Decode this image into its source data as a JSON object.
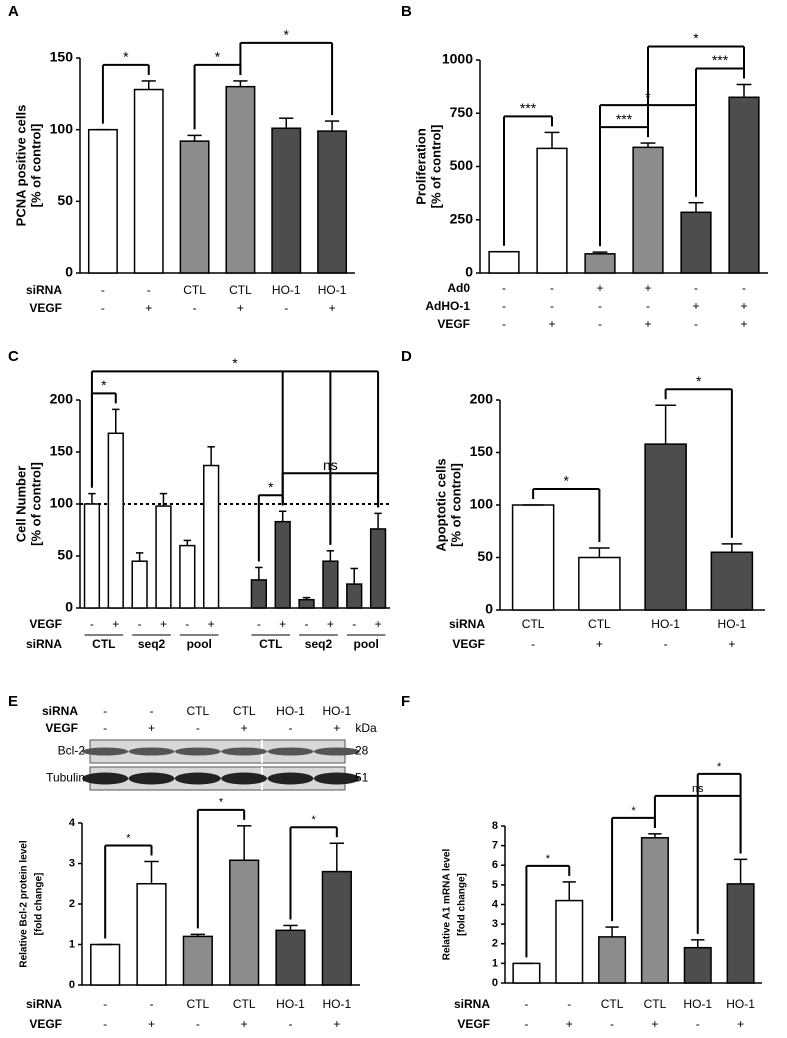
{
  "chart_data": [
    {
      "type": "bar",
      "label": "A",
      "ylabel": [
        "PCNA positive cells",
        "[% of control]"
      ],
      "values": [
        100,
        128,
        92,
        130,
        101,
        99
      ],
      "errors": [
        0,
        6,
        4,
        4,
        7,
        7
      ],
      "colors": [
        "#ffffff",
        "#ffffff",
        "#8c8c8c",
        "#8c8c8c",
        "#4d4d4d",
        "#4d4d4d"
      ],
      "ylim": [
        0,
        150
      ],
      "yticks": [
        0,
        50,
        100,
        150
      ],
      "rows": [
        {
          "label": "siRNA",
          "values": [
            "-",
            "-",
            "CTL",
            "CTL",
            "HO-1",
            "HO-1"
          ]
        },
        {
          "label": "VEGF",
          "values": [
            "-",
            "+",
            "-",
            "+",
            "-",
            "+"
          ]
        }
      ],
      "brackets": [
        {
          "text": "*",
          "bars": [
            0,
            1
          ]
        },
        {
          "text": "*",
          "bars": [
            2,
            3
          ]
        },
        {
          "text": "*",
          "bars": [
            3,
            5
          ]
        }
      ]
    },
    {
      "type": "bar",
      "label": "B",
      "ylabel": [
        "Proliferation",
        "[% of control]"
      ],
      "values": [
        100,
        585,
        90,
        590,
        285,
        825
      ],
      "errors": [
        0,
        75,
        8,
        20,
        45,
        60
      ],
      "colors": [
        "#ffffff",
        "#ffffff",
        "#8c8c8c",
        "#8c8c8c",
        "#4d4d4d",
        "#4d4d4d"
      ],
      "ylim": [
        0,
        1000
      ],
      "yticks": [
        0,
        250,
        500,
        750,
        1000
      ],
      "rows": [
        {
          "label": "Ad0",
          "values": [
            "-",
            "-",
            "+",
            "+",
            "-",
            "-"
          ]
        },
        {
          "label": "AdHO-1",
          "values": [
            "-",
            "-",
            "-",
            "-",
            "+",
            "+"
          ]
        },
        {
          "label": "VEGF",
          "values": [
            "-",
            "+",
            "-",
            "+",
            "-",
            "+"
          ]
        }
      ],
      "brackets": [
        {
          "text": "***",
          "bars": [
            0,
            1
          ]
        },
        {
          "text": "***",
          "bars": [
            2,
            3
          ]
        },
        {
          "text": "*",
          "bars": [
            2,
            4
          ]
        },
        {
          "text": "***",
          "bars": [
            4,
            5
          ]
        },
        {
          "text": "*",
          "bars": [
            3,
            5
          ]
        }
      ]
    },
    {
      "type": "bar",
      "label": "C",
      "ylabel": [
        "Cell Number",
        "[% of control]"
      ],
      "values": [
        100,
        168,
        45,
        98,
        60,
        137,
        27,
        83,
        8,
        45,
        23,
        76
      ],
      "errors": [
        10,
        23,
        8,
        12,
        5,
        18,
        12,
        10,
        2,
        10,
        15,
        15
      ],
      "colors": [
        "#ffffff",
        "#ffffff",
        "#ffffff",
        "#ffffff",
        "#ffffff",
        "#ffffff",
        "#4d4d4d",
        "#4d4d4d",
        "#4d4d4d",
        "#4d4d4d",
        "#4d4d4d",
        "#4d4d4d"
      ],
      "ylim": [
        0,
        200
      ],
      "yticks": [
        0,
        50,
        100,
        150,
        200
      ],
      "reference_line": 100,
      "rows": [
        {
          "label": "VEGF",
          "values": [
            "-",
            "+",
            "-",
            "+",
            "-",
            "+",
            "-",
            "+",
            "-",
            "+",
            "-",
            "+"
          ]
        },
        {
          "label": "siRNA",
          "values": [
            "CTL",
            "seq2",
            "pool",
            "CTL",
            "seq2",
            "pool"
          ]
        }
      ],
      "brackets": [
        {
          "text": "*",
          "bars": [
            0,
            1
          ]
        },
        {
          "text": "*",
          "bars": [
            6,
            7
          ]
        },
        {
          "text": "ns",
          "bars": [
            7,
            9,
            11
          ]
        },
        {
          "text": "*",
          "bars": [
            0,
            7,
            9,
            11
          ]
        }
      ]
    },
    {
      "type": "bar",
      "label": "D",
      "ylabel": [
        "Apoptotic cells",
        "[% of control]"
      ],
      "values": [
        100,
        50,
        158,
        55
      ],
      "errors": [
        0,
        9,
        37,
        8
      ],
      "colors": [
        "#ffffff",
        "#ffffff",
        "#4d4d4d",
        "#4d4d4d"
      ],
      "ylim": [
        0,
        200
      ],
      "yticks": [
        0,
        50,
        100,
        150,
        200
      ],
      "rows": [
        {
          "label": "siRNA",
          "values": [
            "CTL",
            "CTL",
            "HO-1",
            "HO-1"
          ]
        },
        {
          "label": "VEGF",
          "values": [
            "-",
            "+",
            "-",
            "+"
          ]
        }
      ],
      "brackets": [
        {
          "text": "*",
          "bars": [
            0,
            1
          ]
        },
        {
          "text": "*",
          "bars": [
            2,
            3
          ]
        }
      ]
    },
    {
      "type": "bar",
      "label": "E",
      "ylabel": [
        "Relative Bcl-2 protein level",
        "[fold change]"
      ],
      "values": [
        1,
        2.5,
        1.2,
        3.08,
        1.35,
        2.8
      ],
      "errors": [
        0,
        0.55,
        0.05,
        0.85,
        0.12,
        0.7
      ],
      "colors": [
        "#ffffff",
        "#ffffff",
        "#8c8c8c",
        "#8c8c8c",
        "#4d4d4d",
        "#4d4d4d"
      ],
      "ylim": [
        0,
        4
      ],
      "yticks": [
        0,
        1,
        2,
        3,
        4
      ],
      "rows": [
        {
          "label": "siRNA",
          "values": [
            "-",
            "-",
            "CTL",
            "CTL",
            "HO-1",
            "HO-1"
          ]
        },
        {
          "label": "VEGF",
          "values": [
            "-",
            "+",
            "-",
            "+",
            "-",
            "+"
          ]
        }
      ],
      "brackets": [
        {
          "text": "*",
          "bars": [
            0,
            1
          ]
        },
        {
          "text": "*",
          "bars": [
            2,
            3
          ]
        },
        {
          "text": "*",
          "bars": [
            4,
            5
          ]
        }
      ],
      "blot": {
        "rows": [
          {
            "label": "siRNA",
            "values": [
              "-",
              "-",
              "CTL",
              "CTL",
              "HO-1",
              "HO-1"
            ]
          },
          {
            "label": "VEGF",
            "values": [
              "-",
              "+",
              "-",
              "+",
              "-",
              "+"
            ]
          }
        ],
        "unit": "kDa",
        "bands": [
          {
            "name": "Bcl-2",
            "kda": 28
          },
          {
            "name": "Tubulin",
            "kda": 51
          }
        ]
      }
    },
    {
      "type": "bar",
      "label": "F",
      "ylabel": [
        "Relative A1 mRNA level",
        "[fold change]"
      ],
      "values": [
        1,
        4.2,
        2.35,
        7.4,
        1.8,
        5.05
      ],
      "errors": [
        0,
        0.95,
        0.5,
        0.2,
        0.4,
        1.25
      ],
      "colors": [
        "#ffffff",
        "#ffffff",
        "#8c8c8c",
        "#8c8c8c",
        "#4d4d4d",
        "#4d4d4d"
      ],
      "ylim": [
        0,
        8
      ],
      "yticks": [
        0,
        1,
        2,
        3,
        4,
        5,
        6,
        7,
        8
      ],
      "rows": [
        {
          "label": "siRNA",
          "values": [
            "-",
            "-",
            "CTL",
            "CTL",
            "HO-1",
            "HO-1"
          ]
        },
        {
          "label": "VEGF",
          "values": [
            "-",
            "+",
            "-",
            "+",
            "-",
            "+"
          ]
        }
      ],
      "brackets": [
        {
          "text": "*",
          "bars": [
            0,
            1
          ]
        },
        {
          "text": "*",
          "bars": [
            2,
            3
          ]
        },
        {
          "text": "ns",
          "bars": [
            3,
            5
          ]
        },
        {
          "text": "*",
          "bars": [
            4,
            5
          ]
        }
      ]
    }
  ]
}
